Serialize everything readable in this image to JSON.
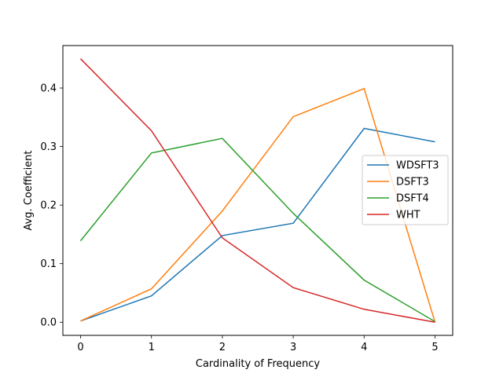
{
  "chart_data": {
    "type": "line",
    "title": "",
    "xlabel": "Cardinality of Frequency",
    "ylabel": "Avg. Coefficient",
    "x": [
      0,
      1,
      2,
      3,
      4,
      5
    ],
    "xlim": [
      -0.25,
      5.25
    ],
    "ylim": [
      -0.0225,
      0.4725
    ],
    "xticks": [
      "0",
      "1",
      "2",
      "3",
      "4",
      "5"
    ],
    "yticks": [
      "0.0",
      "0.1",
      "0.2",
      "0.3",
      "0.4"
    ],
    "grid": false,
    "legend_position": "center-right",
    "series": [
      {
        "name": "WDSFT3",
        "color": "#1f77b4",
        "values": [
          0.002,
          0.045,
          0.148,
          0.169,
          0.331,
          0.308
        ]
      },
      {
        "name": "DSFT3",
        "color": "#ff7f0e",
        "values": [
          0.002,
          0.057,
          0.19,
          0.351,
          0.399,
          0.0
        ]
      },
      {
        "name": "DSFT4",
        "color": "#2ca02c",
        "values": [
          0.139,
          0.289,
          0.314,
          0.186,
          0.072,
          0.001
        ]
      },
      {
        "name": "WHT",
        "color": "#d62728",
        "values": [
          0.45,
          0.327,
          0.144,
          0.059,
          0.022,
          0.0
        ]
      }
    ]
  }
}
